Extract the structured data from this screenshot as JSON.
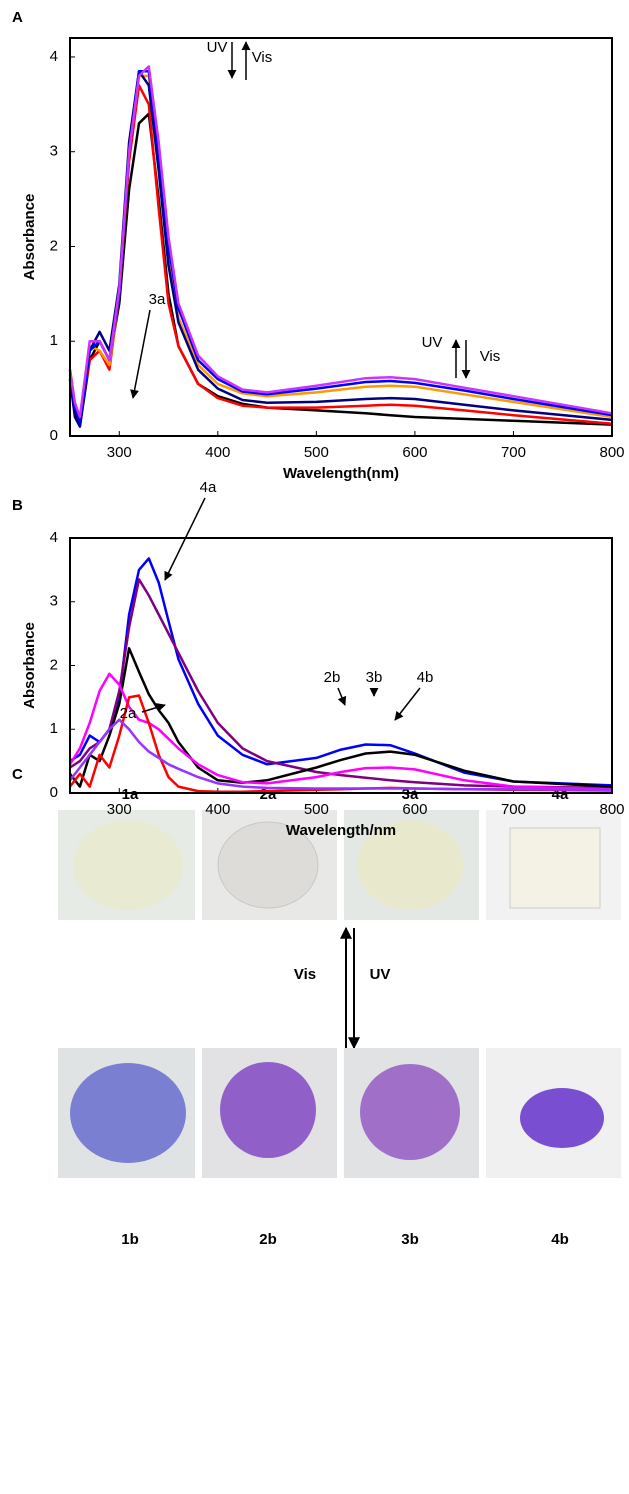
{
  "chart_data": [
    {
      "type": "line",
      "panel_label": "A",
      "x_label": "Wavelength(nm)",
      "y_label": "Absorbance",
      "x": [
        250,
        255,
        260,
        270,
        280,
        290,
        300,
        310,
        320,
        330,
        340,
        350,
        360,
        380,
        400,
        425,
        450,
        500,
        550,
        575,
        600,
        650,
        700,
        800
      ],
      "xlim": [
        250,
        800
      ],
      "ylim": [
        0,
        4.2
      ],
      "xticks": [
        300,
        400,
        500,
        600,
        700,
        800
      ],
      "yticks": [
        0,
        1,
        2,
        3,
        4
      ],
      "series": [
        {
          "color": "#000000",
          "values": [
            0.7,
            0.3,
            0.1,
            0.8,
            1.0,
            0.8,
            1.4,
            2.6,
            3.3,
            3.4,
            2.5,
            1.5,
            0.95,
            0.55,
            0.42,
            0.34,
            0.3,
            0.27,
            0.24,
            0.22,
            0.2,
            0.18,
            0.16,
            0.12
          ]
        },
        {
          "color": "#ff0000",
          "values": [
            0.6,
            0.3,
            0.2,
            0.8,
            0.9,
            0.7,
            1.5,
            2.9,
            3.7,
            3.5,
            2.4,
            1.4,
            0.95,
            0.55,
            0.4,
            0.32,
            0.3,
            0.3,
            0.32,
            0.33,
            0.32,
            0.27,
            0.22,
            0.13
          ]
        },
        {
          "color": "#ff9900",
          "values": [
            0.7,
            0.35,
            0.2,
            0.95,
            0.9,
            0.75,
            1.5,
            3.0,
            3.8,
            3.8,
            2.9,
            1.9,
            1.25,
            0.75,
            0.55,
            0.45,
            0.42,
            0.46,
            0.52,
            0.53,
            0.52,
            0.44,
            0.36,
            0.2
          ]
        },
        {
          "color": "#000080",
          "values": [
            0.6,
            0.2,
            0.1,
            0.9,
            1.1,
            0.9,
            1.6,
            3.1,
            3.85,
            3.7,
            2.8,
            1.8,
            1.2,
            0.7,
            0.5,
            0.38,
            0.35,
            0.36,
            0.39,
            0.4,
            0.39,
            0.33,
            0.27,
            0.17
          ]
        },
        {
          "color": "#0000ff",
          "values": [
            0.65,
            0.3,
            0.15,
            0.9,
            1.0,
            0.8,
            1.5,
            3.0,
            3.85,
            3.85,
            3.0,
            2.0,
            1.35,
            0.8,
            0.6,
            0.47,
            0.44,
            0.5,
            0.57,
            0.58,
            0.56,
            0.48,
            0.39,
            0.22
          ]
        },
        {
          "color": "#cc33ff",
          "values": [
            0.7,
            0.35,
            0.2,
            1.0,
            1.0,
            0.8,
            1.55,
            3.0,
            3.8,
            3.9,
            3.1,
            2.1,
            1.4,
            0.85,
            0.63,
            0.49,
            0.46,
            0.53,
            0.61,
            0.62,
            0.6,
            0.51,
            0.42,
            0.24
          ]
        }
      ],
      "annotations": [
        "UV",
        "Vis",
        "UV",
        "Vis"
      ]
    },
    {
      "type": "line",
      "panel_label": "B",
      "x_label": "Wavelength/nm",
      "y_label": "Absorbance",
      "x": [
        250,
        260,
        270,
        280,
        290,
        300,
        310,
        320,
        330,
        340,
        350,
        360,
        380,
        400,
        425,
        450,
        500,
        525,
        550,
        575,
        600,
        650,
        700,
        800
      ],
      "xlim": [
        250,
        800
      ],
      "ylim": [
        0,
        4
      ],
      "xticks": [
        300,
        400,
        500,
        600,
        700,
        800
      ],
      "yticks": [
        0,
        1,
        2,
        3,
        4
      ],
      "series": [
        {
          "color": "#0000ff",
          "values": [
            0.5,
            0.6,
            0.9,
            0.8,
            1.0,
            1.5,
            2.8,
            3.5,
            3.68,
            3.3,
            2.7,
            2.1,
            1.4,
            0.9,
            0.6,
            0.45,
            0.55,
            0.68,
            0.76,
            0.75,
            0.62,
            0.32,
            0.18,
            0.12
          ]
        },
        {
          "color": "#800080",
          "values": [
            0.4,
            0.5,
            0.7,
            0.8,
            1.0,
            1.6,
            2.6,
            3.35,
            3.1,
            2.8,
            2.5,
            2.2,
            1.6,
            1.1,
            0.7,
            0.5,
            0.33,
            0.28,
            0.24,
            0.2,
            0.17,
            0.12,
            0.1,
            0.08
          ]
        },
        {
          "color": "#000000",
          "values": [
            0.3,
            0.1,
            0.6,
            0.5,
            0.9,
            1.4,
            2.27,
            1.9,
            1.55,
            1.3,
            1.1,
            0.8,
            0.4,
            0.2,
            0.16,
            0.2,
            0.4,
            0.52,
            0.62,
            0.65,
            0.6,
            0.35,
            0.18,
            0.1
          ]
        },
        {
          "color": "#ff00ff",
          "values": [
            0.45,
            0.7,
            1.1,
            1.6,
            1.87,
            1.7,
            1.35,
            1.15,
            1.1,
            1.0,
            0.85,
            0.7,
            0.45,
            0.28,
            0.17,
            0.15,
            0.25,
            0.33,
            0.39,
            0.4,
            0.37,
            0.2,
            0.1,
            0.06
          ]
        },
        {
          "color": "#ff0000",
          "values": [
            0.1,
            0.3,
            0.1,
            0.6,
            0.4,
            0.9,
            1.5,
            1.53,
            1.1,
            0.6,
            0.25,
            0.1,
            0.03,
            0.02,
            0.02,
            0.03,
            0.05,
            0.06,
            0.07,
            0.08,
            0.07,
            0.06,
            0.05,
            0.04
          ]
        },
        {
          "color": "#9933ff",
          "values": [
            0.2,
            0.4,
            0.6,
            0.8,
            1.0,
            1.15,
            1.0,
            0.8,
            0.65,
            0.55,
            0.45,
            0.38,
            0.25,
            0.15,
            0.1,
            0.08,
            0.07,
            0.07,
            0.07,
            0.07,
            0.07,
            0.06,
            0.06,
            0.05
          ]
        }
      ],
      "annotations": [
        "3a",
        "4a",
        "2a",
        "2b",
        "3b",
        "4b"
      ]
    }
  ],
  "photos": {
    "panel_label": "C",
    "top_labels": [
      "1a",
      "2a",
      "3a",
      "4a"
    ],
    "bottom_labels": [
      "1b",
      "2b",
      "3b",
      "4b"
    ],
    "forward": "Vis",
    "reverse": "UV"
  }
}
